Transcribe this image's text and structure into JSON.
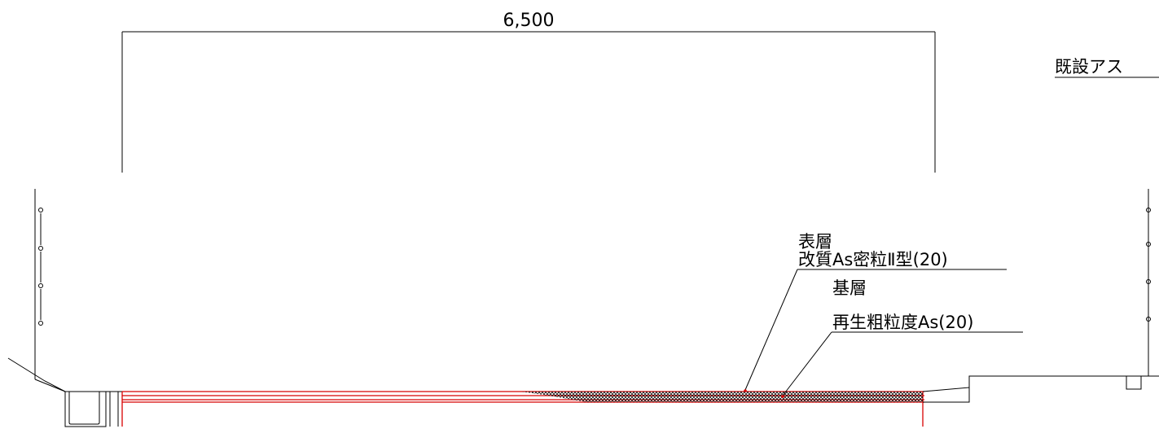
{
  "dimension": {
    "width_label": "6,500"
  },
  "labels": {
    "existing_asphalt": "既設アス",
    "surface_layer_title": "表層",
    "surface_layer_spec": "改質As密粒Ⅱ型(20)",
    "base_layer_title": "基層",
    "base_layer_spec": "再生粗粒度As(20)"
  },
  "colors": {
    "line": "#000000",
    "pavement": "#d80000"
  }
}
